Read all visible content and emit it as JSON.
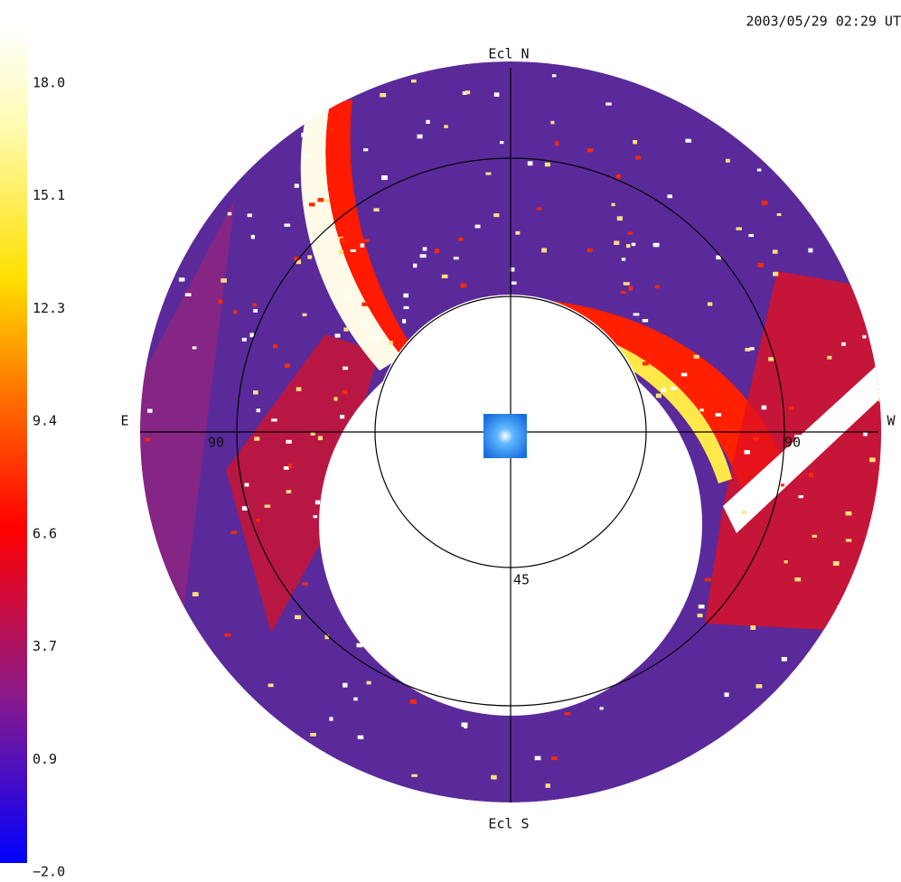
{
  "timestamp": "2003/05/29 02:29 UT",
  "colorbar": {
    "labels": [
      "18.0",
      "15.1",
      "12.3",
      "9.4",
      "6.6",
      "3.7",
      "0.9",
      "−2.0"
    ]
  },
  "map": {
    "north": "Ecl N",
    "south": "Ecl S",
    "east": "E",
    "west": "W",
    "ring_labels": [
      "90",
      "90",
      "45"
    ]
  }
}
